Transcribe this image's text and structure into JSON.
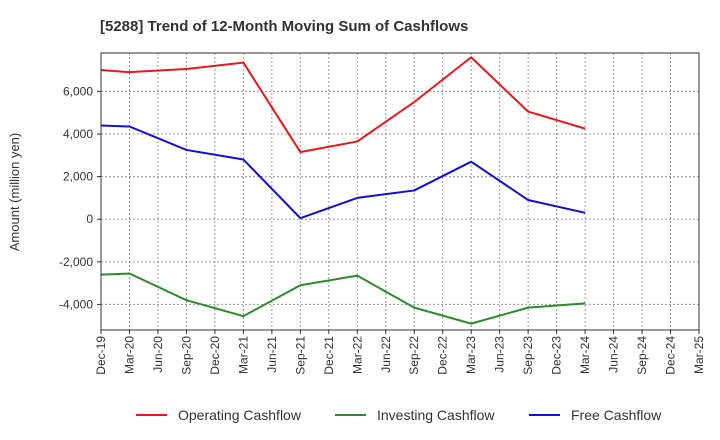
{
  "chart_data": {
    "type": "line",
    "title": "[5288]  Trend of 12-Month Moving Sum of Cashflows",
    "ylabel": "Amount (million yen)",
    "xlabel": "",
    "ylim": [
      -5200,
      7800
    ],
    "yticks": [
      -4000,
      -2000,
      0,
      2000,
      4000,
      6000
    ],
    "ytick_labels": [
      "-4,000",
      "-2,000",
      "0",
      "2,000",
      "4,000",
      "6,000"
    ],
    "categories": [
      "Dec-19",
      "Mar-20",
      "Jun-20",
      "Sep-20",
      "Dec-20",
      "Mar-21",
      "Jun-21",
      "Sep-21",
      "Dec-21",
      "Mar-22",
      "Jun-22",
      "Sep-22",
      "Dec-22",
      "Mar-23",
      "Jun-23",
      "Sep-23",
      "Dec-23",
      "Mar-24",
      "Jun-24",
      "Sep-24",
      "Dec-24",
      "Mar-25"
    ],
    "grid": true,
    "legend_position": "bottom",
    "series": [
      {
        "name": "Operating Cashflow",
        "color": "#e31a1c",
        "values": [
          7000,
          6900,
          null,
          7050,
          null,
          7350,
          null,
          3150,
          null,
          3650,
          null,
          5500,
          null,
          7600,
          null,
          5050,
          null,
          4250,
          null,
          null,
          null,
          null
        ]
      },
      {
        "name": "Investing Cashflow",
        "color": "#2e8b2e",
        "values": [
          -2600,
          -2550,
          null,
          -3800,
          null,
          -4550,
          null,
          -3100,
          null,
          -2650,
          null,
          -4150,
          null,
          -4900,
          null,
          -4150,
          null,
          -3950,
          null,
          null,
          null,
          null
        ]
      },
      {
        "name": "Free Cashflow",
        "color": "#1010d0",
        "values": [
          4400,
          4350,
          null,
          3250,
          null,
          2800,
          null,
          50,
          null,
          1000,
          null,
          1350,
          null,
          2700,
          null,
          900,
          null,
          300,
          null,
          null,
          null,
          null
        ]
      }
    ]
  }
}
